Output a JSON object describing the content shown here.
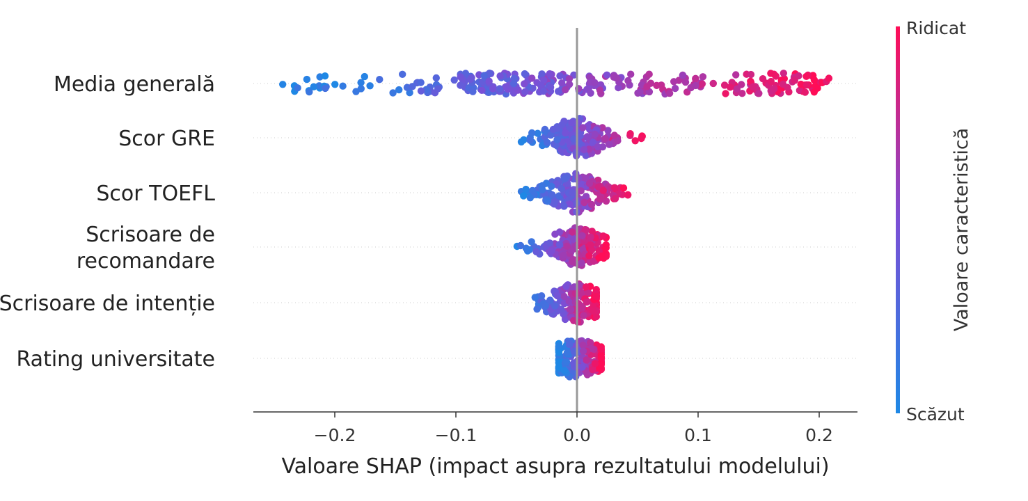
{
  "chart_data": {
    "type": "scatter",
    "subtype": "shap-beeswarm",
    "xlabel": "Valoare SHAP (impact asupra rezultatului modelului)",
    "xlim": [
      -0.265,
      0.23
    ],
    "xticks": [
      -0.2,
      -0.1,
      0.0,
      0.1,
      0.2
    ],
    "xtick_labels": [
      "−0.2",
      "−0.1",
      "0.0",
      "0.1",
      "0.2"
    ],
    "features": [
      {
        "label": "Media generală",
        "min": -0.245,
        "max": 0.208,
        "label_lines": [
          "Media generală"
        ]
      },
      {
        "label": "Scor GRE",
        "min": -0.048,
        "max": 0.057,
        "label_lines": [
          "Scor GRE"
        ]
      },
      {
        "label": "Scor TOEFL",
        "min": -0.046,
        "max": 0.042,
        "label_lines": [
          "Scor TOEFL"
        ]
      },
      {
        "label": "Scrisoare de recomandare",
        "min": -0.058,
        "max": 0.024,
        "label_lines": [
          "Scrisoare de",
          "recomandare"
        ]
      },
      {
        "label": "Scrisoare de intenție",
        "min": -0.042,
        "max": 0.016,
        "label_lines": [
          "Scrisoare de intenție"
        ]
      },
      {
        "label": "Rating universitate",
        "min": -0.015,
        "max": 0.02,
        "label_lines": [
          "Rating universitate"
        ]
      }
    ],
    "colorbar": {
      "title": "Valoare caracteristică",
      "high_label": "Ridicat",
      "low_label": "Scăzut",
      "low_color": "#1E88E5",
      "mid_color": "#7B4FD6",
      "high_color": "#FF0D57"
    },
    "zero_line_color": "#999999",
    "grid": false
  }
}
